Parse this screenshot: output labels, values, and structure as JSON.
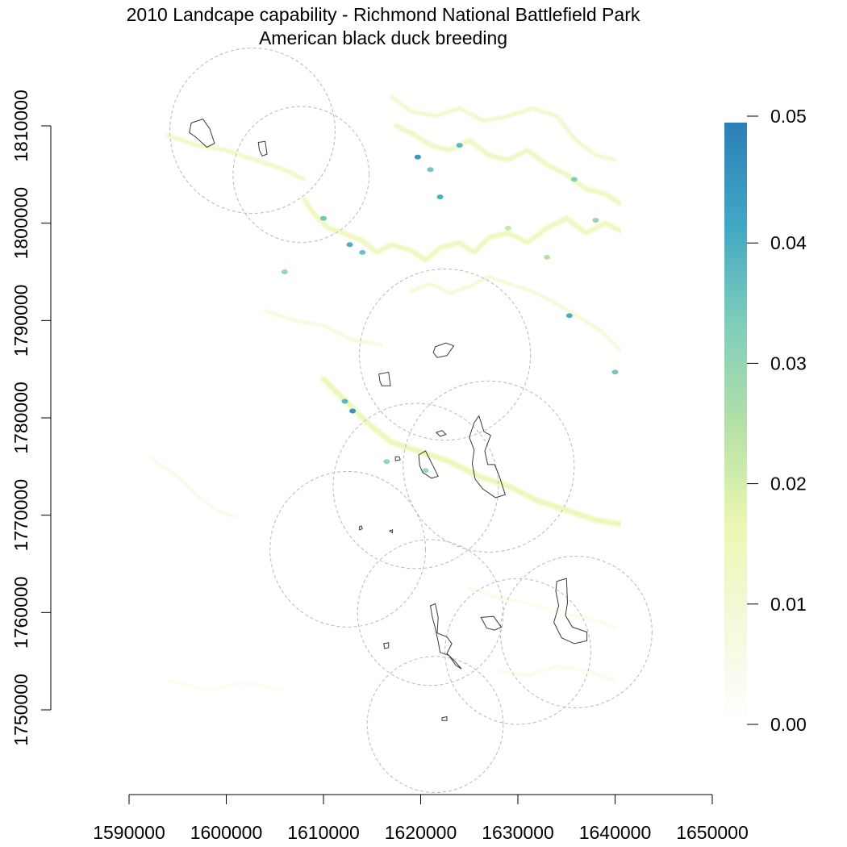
{
  "title": {
    "line1": "2010 Landcape capability - Richmond National Battlefield Park",
    "line2": "American black duck breeding"
  },
  "x_axis": {
    "ticks": [
      {
        "value": 1590000,
        "label": "1590000"
      },
      {
        "value": 1600000,
        "label": "1600000"
      },
      {
        "value": 1610000,
        "label": "1610000"
      },
      {
        "value": 1620000,
        "label": "1620000"
      },
      {
        "value": 1630000,
        "label": "1630000"
      },
      {
        "value": 1640000,
        "label": "1640000"
      },
      {
        "value": 1650000,
        "label": "1650000"
      }
    ]
  },
  "y_axis": {
    "ticks": [
      {
        "value": 1750000,
        "label": "1750000"
      },
      {
        "value": 1760000,
        "label": "1760000"
      },
      {
        "value": 1770000,
        "label": "1770000"
      },
      {
        "value": 1780000,
        "label": "1780000"
      },
      {
        "value": 1790000,
        "label": "1790000"
      },
      {
        "value": 1800000,
        "label": "1800000"
      },
      {
        "value": 1810000,
        "label": "1810000"
      }
    ]
  },
  "legend": {
    "min": 0,
    "max": 0.05,
    "ticks": [
      {
        "value": 0.0,
        "label": "0.00"
      },
      {
        "value": 0.01,
        "label": "0.01"
      },
      {
        "value": 0.02,
        "label": "0.02"
      },
      {
        "value": 0.03,
        "label": "0.03"
      },
      {
        "value": 0.04,
        "label": "0.04"
      },
      {
        "value": 0.05,
        "label": "0.05"
      }
    ],
    "colors": [
      "#ffffff",
      "#f4f9dc",
      "#ebf7b1",
      "#b3e0a6",
      "#7fcdbb",
      "#41a6c4",
      "#2c7fb8"
    ]
  },
  "buffer_circles": [
    {
      "cx": 1602700,
      "cy": 1809500,
      "r": 8500
    },
    {
      "cx": 1607700,
      "cy": 1805000,
      "r": 7000
    },
    {
      "cx": 1622500,
      "cy": 1786500,
      "r": 8800
    },
    {
      "cx": 1627000,
      "cy": 1775000,
      "r": 8800
    },
    {
      "cx": 1619500,
      "cy": 1773000,
      "r": 8500
    },
    {
      "cx": 1612500,
      "cy": 1766500,
      "r": 8000
    },
    {
      "cx": 1621000,
      "cy": 1760000,
      "r": 7500
    },
    {
      "cx": 1636000,
      "cy": 1758000,
      "r": 7800
    },
    {
      "cx": 1630000,
      "cy": 1756000,
      "r": 7500
    },
    {
      "cx": 1621500,
      "cy": 1748500,
      "r": 7000
    }
  ],
  "park_units": [
    [
      [
        1596400,
        1810300
      ],
      [
        1597600,
        1810700
      ],
      [
        1598300,
        1809700
      ],
      [
        1598800,
        1808200
      ],
      [
        1598000,
        1807800
      ],
      [
        1596800,
        1808900
      ],
      [
        1596200,
        1809300
      ]
    ],
    [
      [
        1603300,
        1808300
      ],
      [
        1604000,
        1808400
      ],
      [
        1604200,
        1807100
      ],
      [
        1603700,
        1806900
      ],
      [
        1603400,
        1807500
      ]
    ],
    [
      [
        1621500,
        1787300
      ],
      [
        1622600,
        1787700
      ],
      [
        1623400,
        1787400
      ],
      [
        1622700,
        1786400
      ],
      [
        1621700,
        1786200
      ],
      [
        1621300,
        1786700
      ]
    ],
    [
      [
        1615700,
        1784500
      ],
      [
        1616700,
        1784700
      ],
      [
        1616900,
        1783300
      ],
      [
        1616000,
        1783300
      ],
      [
        1615800,
        1783800
      ]
    ],
    [
      [
        1617400,
        1776000
      ],
      [
        1617800,
        1776000
      ],
      [
        1617900,
        1775700
      ],
      [
        1617400,
        1775600
      ]
    ],
    [
      [
        1621600,
        1778500
      ],
      [
        1622200,
        1778700
      ],
      [
        1622600,
        1778300
      ],
      [
        1622000,
        1778100
      ]
    ],
    [
      [
        1625500,
        1779500
      ],
      [
        1626000,
        1780200
      ],
      [
        1626500,
        1778600
      ],
      [
        1627200,
        1778200
      ],
      [
        1626600,
        1776600
      ],
      [
        1626900,
        1775200
      ],
      [
        1627600,
        1775200
      ],
      [
        1628100,
        1774000
      ],
      [
        1628700,
        1772100
      ],
      [
        1627700,
        1771800
      ],
      [
        1626400,
        1772700
      ],
      [
        1625600,
        1773700
      ],
      [
        1625300,
        1775300
      ],
      [
        1625500,
        1776700
      ],
      [
        1625000,
        1778000
      ]
    ],
    [
      [
        1619800,
        1776200
      ],
      [
        1620500,
        1776600
      ],
      [
        1621300,
        1775000
      ],
      [
        1621800,
        1774000
      ],
      [
        1621100,
        1773800
      ],
      [
        1620200,
        1774400
      ],
      [
        1619900,
        1775100
      ]
    ],
    [
      [
        1621000,
        1760700
      ],
      [
        1621500,
        1760900
      ],
      [
        1621800,
        1759500
      ],
      [
        1621700,
        1757900
      ],
      [
        1622700,
        1757500
      ],
      [
        1623200,
        1756800
      ],
      [
        1622700,
        1755800
      ],
      [
        1623600,
        1754900
      ],
      [
        1624200,
        1754200
      ],
      [
        1623600,
        1754600
      ],
      [
        1622900,
        1755600
      ],
      [
        1622000,
        1755900
      ],
      [
        1621800,
        1757000
      ],
      [
        1621500,
        1758400
      ],
      [
        1621200,
        1759500
      ]
    ],
    [
      [
        1626200,
        1759500
      ],
      [
        1627500,
        1759600
      ],
      [
        1628300,
        1758500
      ],
      [
        1627600,
        1758200
      ],
      [
        1626800,
        1758400
      ]
    ],
    [
      [
        1634000,
        1763200
      ],
      [
        1635000,
        1763500
      ],
      [
        1635100,
        1761000
      ],
      [
        1634900,
        1759700
      ],
      [
        1635600,
        1758500
      ],
      [
        1637100,
        1758000
      ],
      [
        1637100,
        1757100
      ],
      [
        1635800,
        1756800
      ],
      [
        1634500,
        1757400
      ],
      [
        1633700,
        1759000
      ],
      [
        1634200,
        1760700
      ],
      [
        1633900,
        1762200
      ]
    ],
    [
      [
        1616200,
        1756800
      ],
      [
        1616700,
        1756900
      ],
      [
        1616700,
        1756400
      ],
      [
        1616300,
        1756300
      ]
    ],
    [
      [
        1613700,
        1768800
      ],
      [
        1613900,
        1768900
      ],
      [
        1614000,
        1768600
      ],
      [
        1613700,
        1768500
      ]
    ],
    [
      [
        1616800,
        1768400
      ],
      [
        1617100,
        1768500
      ],
      [
        1617100,
        1768200
      ]
    ],
    [
      [
        1622200,
        1749200
      ],
      [
        1622700,
        1749300
      ],
      [
        1622700,
        1748900
      ],
      [
        1622200,
        1748900
      ]
    ]
  ],
  "river_paths": [
    {
      "value": 0.012,
      "width": 5,
      "pts": [
        [
          1594000,
          1809000
        ],
        [
          1597000,
          1808000
        ],
        [
          1600000,
          1807500
        ],
        [
          1603000,
          1806500
        ],
        [
          1606000,
          1805500
        ],
        [
          1608000,
          1804500
        ]
      ]
    },
    {
      "value": 0.014,
      "width": 6,
      "pts": [
        [
          1608000,
          1802500
        ],
        [
          1609000,
          1801000
        ],
        [
          1610500,
          1799500
        ],
        [
          1612000,
          1799000
        ],
        [
          1614000,
          1798200
        ],
        [
          1615500,
          1797000
        ],
        [
          1617000,
          1797800
        ],
        [
          1619000,
          1797200
        ],
        [
          1620500,
          1796200
        ],
        [
          1622000,
          1797500
        ],
        [
          1624000,
          1798000
        ],
        [
          1625500,
          1797000
        ],
        [
          1627000,
          1798500
        ],
        [
          1629000,
          1799000
        ],
        [
          1631000,
          1798000
        ],
        [
          1633000,
          1799500
        ],
        [
          1635000,
          1800500
        ],
        [
          1637000,
          1799000
        ],
        [
          1639000,
          1800000
        ],
        [
          1641000,
          1799000
        ]
      ]
    },
    {
      "value": 0.011,
      "width": 5,
      "pts": [
        [
          1617000,
          1813000
        ],
        [
          1619000,
          1811500
        ],
        [
          1621500,
          1811000
        ],
        [
          1624000,
          1811800
        ],
        [
          1626500,
          1810500
        ],
        [
          1629000,
          1811000
        ],
        [
          1631500,
          1811800
        ],
        [
          1634000,
          1811000
        ],
        [
          1636000,
          1808500
        ],
        [
          1638000,
          1807000
        ],
        [
          1640000,
          1806500
        ]
      ]
    },
    {
      "value": 0.013,
      "width": 6,
      "pts": [
        [
          1617500,
          1810000
        ],
        [
          1619500,
          1809000
        ],
        [
          1621000,
          1808000
        ],
        [
          1623000,
          1807500
        ],
        [
          1625000,
          1808500
        ],
        [
          1627000,
          1807000
        ],
        [
          1629000,
          1806500
        ],
        [
          1631000,
          1807500
        ],
        [
          1633000,
          1806000
        ],
        [
          1635000,
          1805000
        ],
        [
          1637000,
          1803500
        ],
        [
          1639000,
          1803000
        ],
        [
          1640500,
          1802000
        ]
      ]
    },
    {
      "value": 0.015,
      "width": 7,
      "pts": [
        [
          1610000,
          1784000
        ],
        [
          1612000,
          1782000
        ],
        [
          1614500,
          1779500
        ],
        [
          1617000,
          1777500
        ],
        [
          1620000,
          1776500
        ],
        [
          1623000,
          1775500
        ],
        [
          1626000,
          1774000
        ],
        [
          1629000,
          1773000
        ],
        [
          1632000,
          1771500
        ],
        [
          1635000,
          1770500
        ],
        [
          1638000,
          1769500
        ],
        [
          1641000,
          1769000
        ]
      ]
    },
    {
      "value": 0.01,
      "width": 4,
      "pts": [
        [
          1619000,
          1793000
        ],
        [
          1621000,
          1793800
        ],
        [
          1623000,
          1792800
        ],
        [
          1625000,
          1793500
        ],
        [
          1627000,
          1794500
        ],
        [
          1629000,
          1793800
        ],
        [
          1631500,
          1793000
        ],
        [
          1633500,
          1792000
        ],
        [
          1636000,
          1790500
        ],
        [
          1638500,
          1789000
        ],
        [
          1641000,
          1786500
        ]
      ]
    },
    {
      "value": 0.008,
      "width": 4,
      "pts": [
        [
          1604000,
          1791000
        ],
        [
          1607000,
          1790000
        ],
        [
          1610000,
          1789500
        ],
        [
          1613000,
          1788000
        ],
        [
          1616000,
          1787500
        ]
      ]
    },
    {
      "value": 0.007,
      "width": 3,
      "pts": [
        [
          1592000,
          1776000
        ],
        [
          1595000,
          1774000
        ],
        [
          1597000,
          1772000
        ],
        [
          1599000,
          1770500
        ],
        [
          1601000,
          1769800
        ]
      ]
    },
    {
      "value": 0.006,
      "width": 3,
      "pts": [
        [
          1625000,
          1762500
        ],
        [
          1628000,
          1761500
        ],
        [
          1631000,
          1761000
        ],
        [
          1634000,
          1760000
        ],
        [
          1637000,
          1759500
        ],
        [
          1640000,
          1758500
        ]
      ]
    },
    {
      "value": 0.005,
      "width": 4,
      "pts": [
        [
          1628000,
          1754000
        ],
        [
          1631000,
          1753500
        ],
        [
          1634000,
          1754500
        ],
        [
          1637000,
          1754000
        ],
        [
          1640000,
          1753000
        ]
      ]
    },
    {
      "value": 0.005,
      "width": 3,
      "pts": [
        [
          1594000,
          1753000
        ],
        [
          1598000,
          1752000
        ],
        [
          1602000,
          1752800
        ],
        [
          1606000,
          1752000
        ]
      ]
    }
  ],
  "wetland_patches": [
    {
      "x": 1619700,
      "y": 1806800,
      "value": 0.045
    },
    {
      "x": 1622000,
      "y": 1802700,
      "value": 0.04
    },
    {
      "x": 1621000,
      "y": 1805500,
      "value": 0.035
    },
    {
      "x": 1624000,
      "y": 1808000,
      "value": 0.038
    },
    {
      "x": 1612700,
      "y": 1797800,
      "value": 0.04
    },
    {
      "x": 1614000,
      "y": 1797000,
      "value": 0.036
    },
    {
      "x": 1610000,
      "y": 1800500,
      "value": 0.035
    },
    {
      "x": 1613000,
      "y": 1780700,
      "value": 0.045
    },
    {
      "x": 1612200,
      "y": 1781700,
      "value": 0.038
    },
    {
      "x": 1616500,
      "y": 1775500,
      "value": 0.03
    },
    {
      "x": 1620500,
      "y": 1774600,
      "value": 0.028
    },
    {
      "x": 1635300,
      "y": 1790500,
      "value": 0.04
    },
    {
      "x": 1640000,
      "y": 1784700,
      "value": 0.035
    },
    {
      "x": 1635800,
      "y": 1804500,
      "value": 0.032
    },
    {
      "x": 1638000,
      "y": 1800300,
      "value": 0.03
    },
    {
      "x": 1629000,
      "y": 1799500,
      "value": 0.022
    },
    {
      "x": 1633000,
      "y": 1796500,
      "value": 0.025
    },
    {
      "x": 1606000,
      "y": 1795000,
      "value": 0.03
    }
  ]
}
